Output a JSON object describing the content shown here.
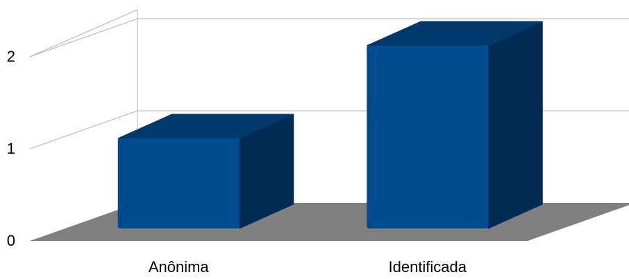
{
  "chart_data": {
    "type": "bar",
    "style": "3d",
    "categories": [
      "Anônima",
      "Identificada"
    ],
    "values": [
      1,
      2
    ],
    "ylim": [
      0,
      2
    ],
    "yticks": [
      "0",
      "1",
      "2"
    ],
    "grid": true,
    "legend": "none",
    "colors": {
      "bar_front": "#004c8f",
      "bar_top": "#00396b",
      "bar_side": "#002a52",
      "floor": "#808080",
      "grid": "#b3b3b3"
    }
  }
}
